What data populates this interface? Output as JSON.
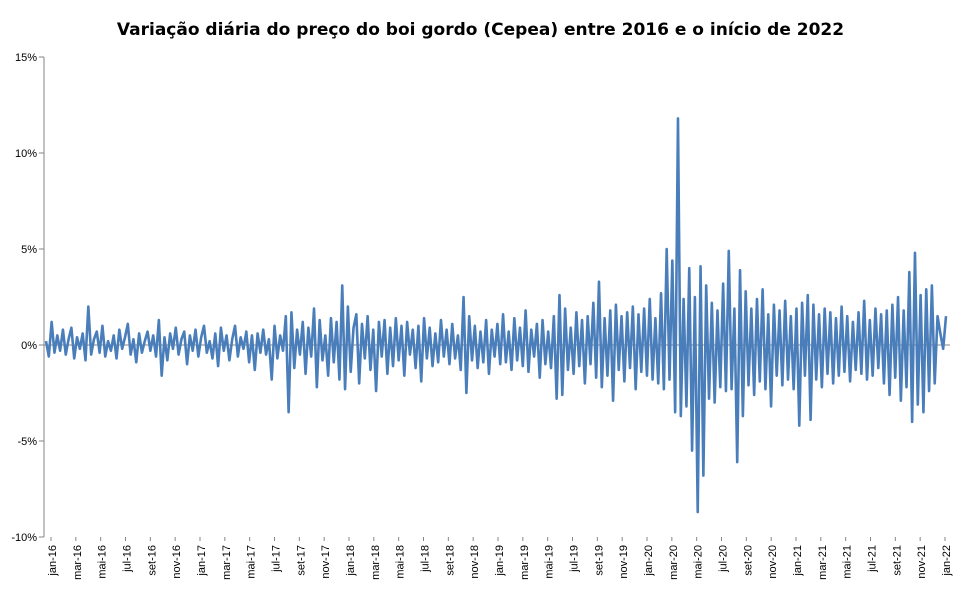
{
  "chart_data": {
    "type": "line",
    "title": "Variação diária do preço do boi gordo (Cepea) entre 2016 e o início de 2022",
    "xlabel": "",
    "ylabel": "",
    "ylim": [
      -10,
      15
    ],
    "yticks": [
      15,
      10,
      5,
      0,
      -5,
      -10
    ],
    "ytick_labels": [
      "15%",
      "10%",
      "5%",
      "0%",
      "-5%",
      "-10%"
    ],
    "grid": false,
    "series_color": "#4a7ebb",
    "x_labels": [
      "jan-16",
      "mar-16",
      "mai-16",
      "jul-16",
      "set-16",
      "nov-16",
      "jan-17",
      "mar-17",
      "mai-17",
      "jul-17",
      "set-17",
      "nov-17",
      "jan-18",
      "mar-18",
      "mai-18",
      "jul-18",
      "set-18",
      "nov-18",
      "jan-19",
      "mar-19",
      "mai-19",
      "jul-19",
      "set-19",
      "nov-19",
      "jan-20",
      "mar-20",
      "mai-20",
      "jul-20",
      "set-20",
      "nov-20",
      "jan-21",
      "mar-21",
      "mai-21",
      "jul-21",
      "set-21",
      "nov-21",
      "jan-22"
    ],
    "series": [
      {
        "values": [
          0.2,
          -0.6,
          1.2,
          -0.4,
          0.5,
          -0.3,
          0.8,
          -0.5,
          0.3,
          0.9,
          -0.7,
          0.4,
          -0.2,
          0.6,
          -0.8,
          2.0,
          -0.5,
          0.3,
          0.7,
          -0.4,
          1.0,
          -0.6,
          0.2,
          -0.3,
          0.5,
          -0.7,
          0.8,
          -0.2,
          0.4,
          1.1,
          -0.5,
          0.3,
          -0.9,
          0.6,
          -0.4,
          0.2,
          0.7,
          -0.3,
          0.5,
          -0.6,
          1.3,
          -1.6,
          0.4,
          -0.8,
          0.6,
          -0.2,
          0.9,
          -0.5,
          0.3,
          0.7,
          -1.0,
          0.5,
          -0.3,
          0.8,
          -0.6,
          0.4,
          1.0,
          -0.4,
          0.2,
          -0.7,
          0.6,
          -1.1,
          0.9,
          -0.3,
          0.5,
          -0.8,
          0.3,
          1.0,
          -0.6,
          0.4,
          -0.2,
          0.7,
          -0.9,
          0.5,
          -1.3,
          0.6,
          -0.4,
          0.8,
          -0.5,
          0.3,
          -1.8,
          1.0,
          -0.7,
          0.5,
          -0.3,
          1.5,
          -3.5,
          1.7,
          -1.2,
          0.8,
          -0.5,
          1.2,
          -1.5,
          0.9,
          -0.6,
          1.9,
          -2.2,
          1.3,
          -0.8,
          0.5,
          -1.6,
          1.4,
          -0.9,
          1.2,
          -1.8,
          3.1,
          -2.3,
          2.0,
          -1.4,
          0.9,
          1.6,
          -2.0,
          1.1,
          -0.7,
          1.5,
          -1.3,
          0.8,
          -2.4,
          1.2,
          -0.6,
          1.3,
          -1.5,
          0.9,
          -1.1,
          1.4,
          -0.8,
          1.0,
          -1.6,
          1.2,
          -0.5,
          0.8,
          -1.2,
          1.0,
          -1.9,
          1.4,
          -0.7,
          0.9,
          -1.1,
          0.6,
          -0.9,
          1.3,
          -0.6,
          0.8,
          -1.0,
          1.1,
          -0.7,
          0.5,
          -1.3,
          2.5,
          -2.5,
          1.5,
          -0.8,
          1.0,
          -1.2,
          0.7,
          -0.9,
          1.3,
          -1.5,
          0.8,
          -0.6,
          1.1,
          -1.0,
          1.6,
          -0.9,
          0.7,
          -1.3,
          1.4,
          -0.8,
          0.9,
          -1.1,
          1.8,
          -1.4,
          0.8,
          -0.6,
          1.1,
          -1.7,
          1.3,
          -1.0,
          0.7,
          -1.2,
          1.5,
          -2.8,
          2.6,
          -2.6,
          1.9,
          -1.3,
          0.9,
          -1.5,
          1.7,
          -1.1,
          1.3,
          -2.0,
          1.5,
          -1.0,
          2.2,
          -1.7,
          3.3,
          -2.2,
          1.4,
          -1.6,
          1.8,
          -2.9,
          2.1,
          -1.3,
          1.5,
          -1.9,
          1.7,
          -1.2,
          2.0,
          -2.3,
          1.6,
          -1.4,
          1.9,
          -1.6,
          2.4,
          -1.8,
          1.4,
          -2.0,
          2.7,
          -2.3,
          5.0,
          -1.8,
          4.4,
          -3.5,
          11.8,
          -3.7,
          2.4,
          -3.2,
          4.0,
          -5.5,
          2.5,
          -8.7,
          4.1,
          -6.8,
          3.1,
          -2.8,
          2.2,
          -3.0,
          1.8,
          -2.2,
          3.2,
          -2.4,
          4.9,
          -2.3,
          1.9,
          -6.1,
          3.9,
          -3.7,
          2.8,
          -2.1,
          1.9,
          -2.6,
          2.4,
          -1.9,
          2.9,
          -2.3,
          1.6,
          -3.2,
          2.1,
          -1.6,
          1.8,
          -2.1,
          2.3,
          -1.8,
          1.5,
          -2.3,
          1.9,
          -4.2,
          2.2,
          -1.6,
          2.6,
          -3.9,
          2.1,
          -1.8,
          1.6,
          -2.2,
          1.9,
          -1.5,
          1.7,
          -2.0,
          1.4,
          -1.6,
          2.0,
          -1.4,
          1.5,
          -1.9,
          1.2,
          -1.3,
          1.7,
          -1.5,
          2.3,
          -1.8,
          1.3,
          -1.6,
          1.9,
          -1.2,
          1.6,
          -2.0,
          1.8,
          -2.6,
          2.1,
          -1.7,
          2.5,
          -2.9,
          1.8,
          -2.2,
          3.8,
          -4.0,
          4.8,
          -3.1,
          2.6,
          -3.5,
          2.9,
          -2.4,
          3.1,
          -2.0,
          1.5,
          0.6,
          -0.2,
          1.5
        ]
      }
    ]
  }
}
